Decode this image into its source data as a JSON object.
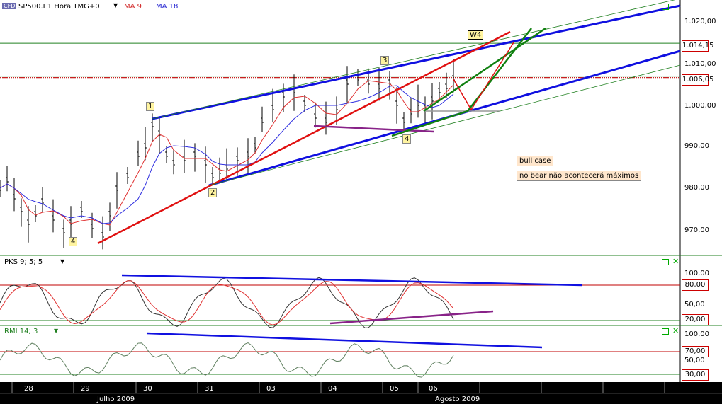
{
  "header": {
    "logo": "CFD",
    "symbol": "SP500.I 1 Hora TMG+0",
    "dropdown_icon": "chevron-down-icon",
    "ma1_label": "MA 9",
    "ma2_label": "MA 18"
  },
  "price_axis": {
    "ticks": [
      "1.020,00",
      "1.010,00",
      "1.000,00",
      "990,00",
      "980,00",
      "970,00"
    ],
    "marker_high": "1.014,15",
    "marker_current": "1.006,05"
  },
  "indicators": {
    "pks": {
      "label": "PKS 9; 5; 5",
      "ticks": [
        "100,00",
        "50,00"
      ],
      "upper": "80,00",
      "lower": "20,00"
    },
    "rmi": {
      "label": "RMI 14; 3",
      "ticks": [
        "100,00",
        "50,00"
      ],
      "upper": "70,00",
      "lower": "30,00"
    }
  },
  "time_axis": {
    "days": [
      "28",
      "29",
      "30",
      "31",
      "03",
      "04",
      "05",
      "06"
    ],
    "months": [
      "Julho 2009",
      "Agosto 2009"
    ]
  },
  "annotations": {
    "waves": [
      "1",
      "2",
      "3",
      "4",
      "4"
    ],
    "w4": "W4",
    "bull": "bull case",
    "bear": "no bear não acontecerá máximos"
  },
  "colors": {
    "price_bar": "#000000",
    "ma_fast": "#e03030",
    "ma_slow": "#3030e0",
    "trend_blue": "#1010e0",
    "trend_red": "#e01010",
    "trend_green": "#108010",
    "purple": "#882288",
    "level_line": "#c00000"
  },
  "chart_data": {
    "type": "ohlc",
    "title": "SP500.I 1 Hora TMG+0",
    "x": [
      "28",
      "28",
      "28",
      "29",
      "29",
      "29",
      "30",
      "30",
      "30",
      "31",
      "31",
      "31",
      "03",
      "03",
      "03",
      "04",
      "04",
      "04",
      "05",
      "05",
      "05",
      "06",
      "06"
    ],
    "close": [
      982,
      978,
      973,
      969,
      974,
      979,
      992,
      989,
      986,
      987,
      987,
      985,
      997,
      1003,
      1002,
      996,
      998,
      1006,
      1004,
      995,
      1001,
      1003,
      1006
    ],
    "ylim": [
      965,
      1025
    ],
    "reference_levels": [
      1014.15,
      1006.05
    ],
    "indicator_levels": {
      "pks": [
        80,
        20
      ],
      "rmi": [
        70,
        30
      ]
    }
  }
}
